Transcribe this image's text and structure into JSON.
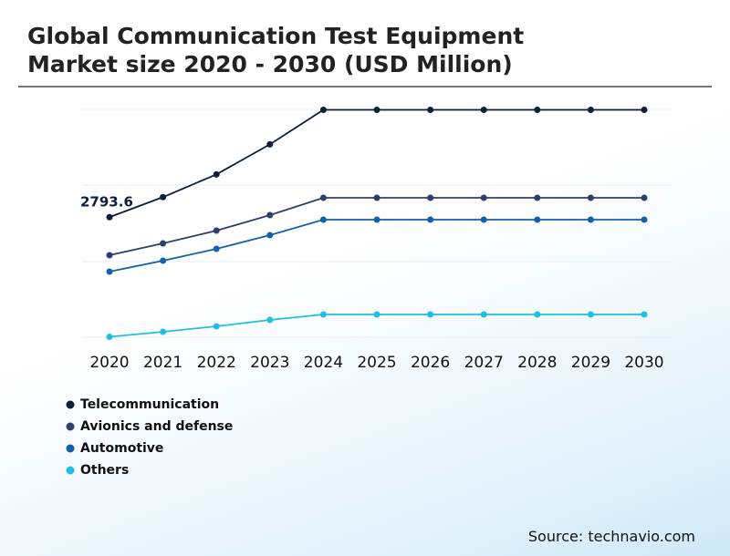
{
  "chart_data": {
    "type": "line",
    "title": "Global Communication Test Equipment Market size 2020 - 2030 (USD Million)",
    "source": "Source: technavio.com",
    "categories": [
      "2020",
      "2021",
      "2022",
      "2023",
      "2024",
      "2025",
      "2026",
      "2027",
      "2028",
      "2029",
      "2030"
    ],
    "ylim": [
      0,
      5300
    ],
    "series": [
      {
        "name": "Telecommunication",
        "color": "#0d1f3c",
        "values": [
          2793.6,
          3259,
          3788,
          4486,
          5290,
          5290,
          5290,
          5290,
          5290,
          5290,
          5290
        ]
      },
      {
        "name": "Avionics and defense",
        "color": "#2e3f6e",
        "values": [
          1908,
          2184,
          2480,
          2841,
          3244,
          3244,
          3244,
          3244,
          3244,
          3244,
          3244
        ]
      },
      {
        "name": "Automotive",
        "color": "#1560a8",
        "values": [
          1526,
          1781,
          2056,
          2374,
          2735,
          2735,
          2735,
          2735,
          2735,
          2735,
          2735
        ]
      },
      {
        "name": "Others",
        "color": "#1ec0e0",
        "values": [
          10,
          127,
          254,
          403,
          530,
          530,
          530,
          530,
          530,
          530,
          530
        ]
      }
    ]
  }
}
